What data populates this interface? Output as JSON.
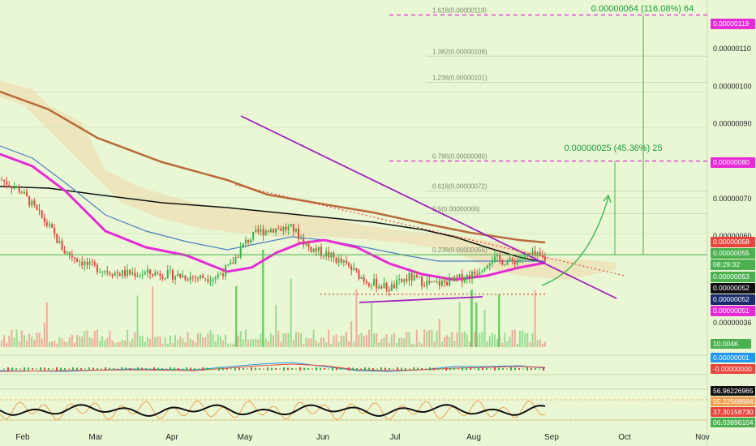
{
  "chart_data": {
    "type": "candlestick",
    "x_months": [
      "Feb",
      "Mar",
      "Apr",
      "May",
      "Jun",
      "Jul",
      "Aug",
      "Sep",
      "Oct",
      "Nov"
    ],
    "y_ticks": [
      {
        "v": 1.1e-06,
        "label": "0.00000110"
      },
      {
        "v": 1e-06,
        "label": "0.00000100"
      },
      {
        "v": 9e-07,
        "label": "0.00000090"
      },
      {
        "v": 7e-07,
        "label": "0.00000070"
      },
      {
        "v": 6e-07,
        "label": "0.00000060"
      },
      {
        "v": 3.6e-07,
        "label": "0.00000036"
      }
    ],
    "fib_levels": [
      {
        "v": 1.19e-06,
        "label": "1.618(0.00000119)",
        "strong": true
      },
      {
        "v": 1.08e-06,
        "label": "1.382(0.00000108)",
        "strong": false
      },
      {
        "v": 1.01e-06,
        "label": "1.236(0.00000101)",
        "strong": false
      },
      {
        "v": 8e-07,
        "label": "0.786(0.00000080)",
        "strong": true
      },
      {
        "v": 7.2e-07,
        "label": "0.618(0.00000072)",
        "strong": false
      },
      {
        "v": 6.6e-07,
        "label": "0.5(0.00000066)",
        "strong": false
      },
      {
        "v": 5.5e-07,
        "label": "0.238(0.00000055)",
        "strong": false
      }
    ],
    "price_badges": [
      {
        "v": 1.19e-06,
        "label": "0.00000119",
        "color": "#e62bd6"
      },
      {
        "v": 8e-07,
        "label": "0.00000080",
        "color": "#e62bd6"
      },
      {
        "v": 5.8e-07,
        "label": "0.00000058",
        "color": "#e8453c"
      },
      {
        "v": 5.5e-07,
        "label": "0.00000055",
        "color": "#4caf50"
      },
      {
        "v": 5.4e-07,
        "label": "08:29:32",
        "color": "#4caf50"
      },
      {
        "v": 5.3e-07,
        "label": "0.00000053",
        "color": "#4caf50"
      },
      {
        "v": 5.2e-07,
        "label": "0.00000052",
        "color": "#111111"
      },
      {
        "v": 5.2e-07,
        "label": "0.00000052",
        "color": "#1a2a6b"
      },
      {
        "v": 5.1e-07,
        "label": "0.00000051",
        "color": "#e62bd6"
      }
    ],
    "targets": [
      {
        "text": "0.00000064 (116.08%) 64",
        "to": 1.19e-06
      },
      {
        "text": "0.00000025 (45.36%) 25",
        "to": 8e-07
      }
    ],
    "base_price": 5.5e-07,
    "volume_badge": "10.004K",
    "macd_badges": [
      {
        "label": "0.00000001",
        "color": "#2196f3"
      },
      {
        "label": "-0.00000000",
        "color": "#e8453c"
      }
    ],
    "rsi_badges": [
      {
        "label": "56.96226965",
        "color": "#111111"
      },
      {
        "label": "55.22568684",
        "color": "#f0a050"
      },
      {
        "label": "37.30158730",
        "color": "#e8453c"
      },
      {
        "label": "06.03896104",
        "color": "#4caf50"
      }
    ],
    "ylim": [
      3.1e-07,
      1.23e-06
    ]
  },
  "colors": {
    "background": "#e9f7d4",
    "up": "#35b54a",
    "down": "#e8453c",
    "ma_slow": "#b96a3a",
    "ma_long": "#111111",
    "ma_mid": "#e62bd6",
    "ma_fast": "#4a7fc0",
    "cloud": "#f0d7a8",
    "trendline": "#a020c0"
  }
}
